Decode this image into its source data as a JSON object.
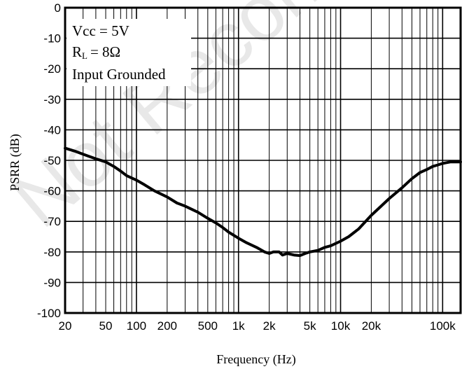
{
  "chart_data": {
    "type": "line",
    "xlabel": "Frequency (Hz)",
    "ylabel": "PSRR  (dB)",
    "x_scale": "log",
    "xlim": [
      20,
      150000
    ],
    "ylim": [
      -100,
      0
    ],
    "grid": true,
    "x_ticks": [
      {
        "value": 20,
        "label": "20"
      },
      {
        "value": 50,
        "label": "50"
      },
      {
        "value": 100,
        "label": "100"
      },
      {
        "value": 200,
        "label": "200"
      },
      {
        "value": 500,
        "label": "500"
      },
      {
        "value": 1000,
        "label": "1k"
      },
      {
        "value": 2000,
        "label": "2k"
      },
      {
        "value": 5000,
        "label": "5k"
      },
      {
        "value": 10000,
        "label": "10k"
      },
      {
        "value": 20000,
        "label": "20k"
      },
      {
        "value": 100000,
        "label": "100k"
      }
    ],
    "y_ticks": [
      {
        "value": 0,
        "label": "0"
      },
      {
        "value": -10,
        "label": "-10"
      },
      {
        "value": -20,
        "label": "-20"
      },
      {
        "value": -30,
        "label": "-30"
      },
      {
        "value": -40,
        "label": "-40"
      },
      {
        "value": -50,
        "label": "-50"
      },
      {
        "value": -60,
        "label": "-60"
      },
      {
        "value": -70,
        "label": "-70"
      },
      {
        "value": -80,
        "label": "-80"
      },
      {
        "value": -90,
        "label": "-90"
      },
      {
        "value": -100,
        "label": "-100"
      }
    ],
    "annotations": [
      "Vcc = 5V",
      "R",
      "L",
      "= 8Ω",
      "Input Grounded"
    ],
    "series": [
      {
        "x": [
          20,
          25,
          30,
          40,
          50,
          60,
          70,
          80,
          100,
          120,
          150,
          200,
          250,
          300,
          400,
          500,
          600,
          700,
          800,
          1000,
          1200,
          1500,
          1800,
          2000,
          2200,
          2500,
          2700,
          3000,
          3500,
          4000,
          4500,
          5000,
          6000,
          7000,
          8000,
          10000,
          12000,
          15000,
          20000,
          25000,
          30000,
          40000,
          50000,
          60000,
          70000,
          80000,
          90000,
          100000,
          120000,
          150000
        ],
        "y": [
          -46,
          -47,
          -48,
          -49.5,
          -50.5,
          -52,
          -53.5,
          -55,
          -56.5,
          -58,
          -60,
          -62,
          -64,
          -65,
          -67,
          -69,
          -70.5,
          -72,
          -73.5,
          -75.5,
          -77,
          -78.5,
          -80,
          -80.5,
          -80,
          -80,
          -81,
          -80.5,
          -81,
          -81.2,
          -80.5,
          -80,
          -79.5,
          -78.5,
          -78,
          -76.5,
          -75,
          -72.5,
          -68,
          -65,
          -62.5,
          -59,
          -56,
          -54,
          -53,
          -52,
          -51.5,
          -51,
          -50.5,
          -50.5
        ]
      }
    ]
  }
}
